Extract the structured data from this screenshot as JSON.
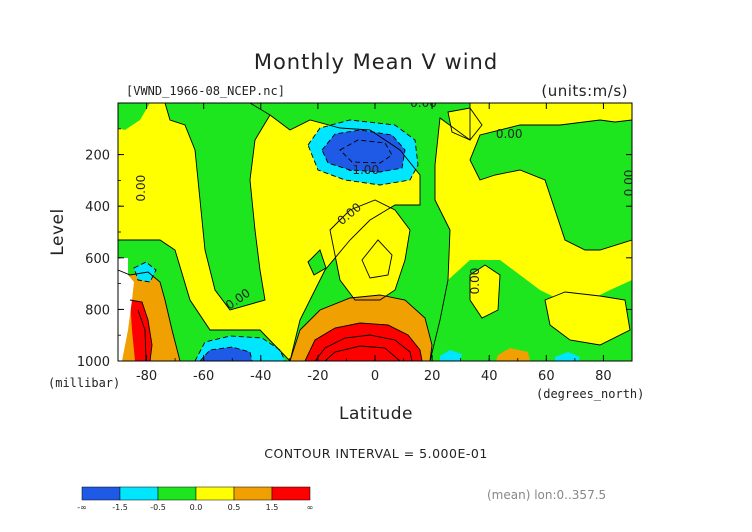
{
  "chart_data": {
    "type": "contour",
    "title": "Monthly Mean V wind",
    "dataset_label": "[VWND_1966-08_NCEP.nc]",
    "units_label": "(units:m/s)",
    "xlabel": "Latitude",
    "x_units": "(degrees_north)",
    "ylabel": "Level",
    "y_units": "(millibar)",
    "xlim": [
      -90,
      90
    ],
    "ylim": [
      1000,
      0
    ],
    "x_ticks": [
      -80,
      -60,
      -40,
      -20,
      0,
      20,
      40,
      60,
      80
    ],
    "y_ticks": [
      200,
      400,
      600,
      800,
      1000
    ],
    "contour_interval": "CONTOUR INTERVAL = 5.000E-01",
    "averaging_note": "(mean) lon:0..357.5",
    "colors": {
      "lt_-1.5": "#1e5ae6",
      "-1.5_-0.5": "#00e6ff",
      "-0.5_0.0": "#1ee61e",
      "0.0_0.5": "#ffff00",
      "0.5_1.5": "#f0a000",
      "gt_1.5": "#ff0000",
      "strong_negative": "#1e5ae6"
    },
    "colorbar": {
      "labels": [
        "-∞",
        "-1.5",
        "-0.5",
        "0.0",
        "0.5",
        "1.5",
        "∞"
      ],
      "colors": [
        "#1e5ae6",
        "#00e6ff",
        "#1ee61e",
        "#ffff00",
        "#f0a000",
        "#ff0000"
      ]
    },
    "contour_labels": [
      {
        "text": "0.00",
        "lat": 17,
        "lev": 0
      },
      {
        "text": "0.00",
        "lat": 47,
        "lev": 120
      },
      {
        "text": "-1.00",
        "lat": -4,
        "lev": 260
      },
      {
        "text": "0.00",
        "lat": -82,
        "lev": 330
      },
      {
        "text": "0.00",
        "lat": 89,
        "lev": 310
      },
      {
        "text": "0.00",
        "lat": -9,
        "lev": 430
      },
      {
        "text": "0.00",
        "lat": 35,
        "lev": 690
      },
      {
        "text": "0.00",
        "lat": -48,
        "lev": 760
      }
    ]
  }
}
